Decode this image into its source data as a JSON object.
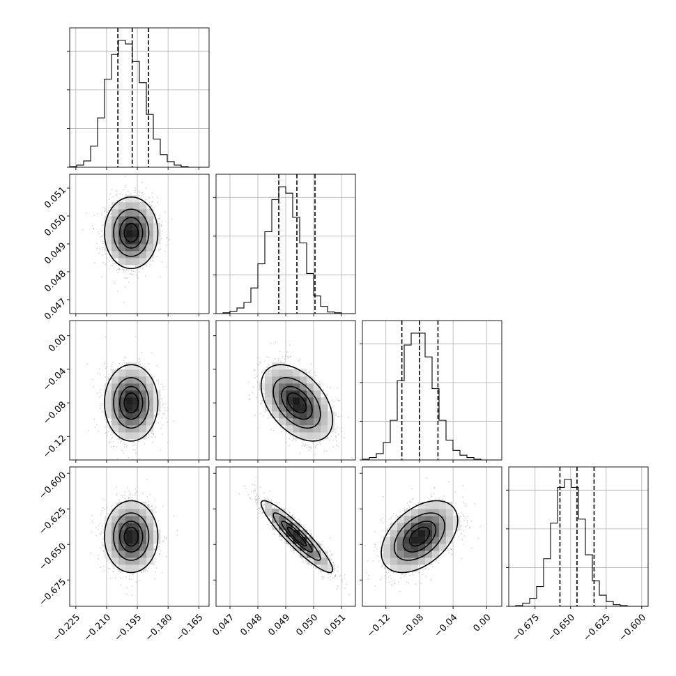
{
  "chart_data": {
    "type": "corner",
    "grid": true,
    "colors": {
      "line": "#000000",
      "grid": "#b0b0b0",
      "points": "#7f7f7f"
    },
    "parameters": [
      {
        "ticks": [
          -0.225,
          -0.21,
          -0.195,
          -0.18,
          -0.165
        ],
        "tick_labels": [
          "−0.225",
          "−0.210",
          "−0.195",
          "−0.180",
          "−0.165"
        ],
        "range": [
          -0.228,
          -0.16
        ],
        "mean": -0.198,
        "std": 0.0063,
        "quantiles": [
          -0.2045,
          -0.1975,
          -0.1895
        ]
      },
      {
        "ticks": [
          0.047,
          0.048,
          0.049,
          0.05,
          0.051
        ],
        "tick_labels": [
          "0.047",
          "0.048",
          "0.049",
          "0.050",
          "0.051"
        ],
        "range": [
          0.0465,
          0.0515
        ],
        "mean": 0.0494,
        "std": 0.00062,
        "quantiles": [
          0.04875,
          0.0494,
          0.05005
        ]
      },
      {
        "ticks": [
          -0.12,
          -0.08,
          -0.04,
          0.0
        ],
        "tick_labels": [
          "−0.12",
          "−0.08",
          "−0.04",
          "0.00"
        ],
        "range": [
          -0.148,
          0.018
        ],
        "mean": -0.08,
        "std": 0.022,
        "quantiles": [
          -0.101,
          -0.08,
          -0.058
        ]
      },
      {
        "ticks": [
          -0.675,
          -0.65,
          -0.625,
          -0.6
        ],
        "tick_labels": [
          "−0.675",
          "−0.650",
          "−0.625",
          "−0.600"
        ],
        "range": [
          -0.6935,
          -0.5955
        ],
        "mean": -0.6445,
        "std": 0.0122,
        "quantiles": [
          -0.6575,
          -0.6455,
          -0.6335
        ]
      }
    ],
    "correlations": [
      [
        1.0,
        0.0,
        0.0,
        0.0
      ],
      [
        0.0,
        1.0,
        -0.45,
        -0.92
      ],
      [
        0.0,
        -0.45,
        1.0,
        0.45
      ],
      [
        0.0,
        -0.92,
        0.45,
        1.0
      ]
    ],
    "histogram_counts": [
      [
        1,
        3,
        9,
        30,
        70,
        125,
        160,
        180,
        175,
        150,
        120,
        75,
        40,
        18,
        8,
        3,
        1,
        0,
        0,
        0
      ],
      [
        0,
        1,
        3,
        7,
        14,
        32,
        62,
        102,
        142,
        158,
        150,
        120,
        88,
        50,
        22,
        9,
        2,
        1,
        0,
        0
      ],
      [
        1,
        3,
        8,
        22,
        50,
        100,
        145,
        160,
        160,
        130,
        90,
        50,
        25,
        12,
        6,
        3,
        1,
        0,
        0,
        0
      ],
      [
        0,
        1,
        4,
        10,
        25,
        60,
        105,
        150,
        160,
        150,
        110,
        65,
        32,
        14,
        6,
        2,
        1,
        0,
        0,
        0
      ]
    ],
    "contour_levels_sigma": [
      0.5,
      1.0,
      1.5,
      2.0
    ]
  }
}
